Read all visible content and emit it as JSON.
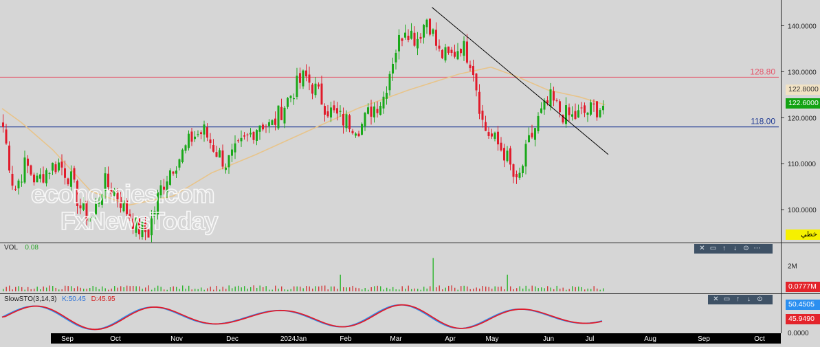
{
  "watermark": {
    "line1": "economies.com",
    "line2": "FxNewsToday"
  },
  "toolbar_icons": [
    "close-icon",
    "window-icon",
    "move-up-icon",
    "move-down-icon",
    "settings-icon",
    "more-icon"
  ],
  "toolbar_glyphs": {
    "close": "✕",
    "window": "▭",
    "up": "↑",
    "down": "↓",
    "settings": "⊙",
    "more": "⋯"
  },
  "price_pane": {
    "y_ticks": [
      "140.0000",
      "130.0000",
      "120.0000",
      "110.0000",
      "100.0000"
    ],
    "resistance_label": "128.80",
    "support_label": "118.00",
    "ma_tag": "122.8000",
    "price_tag": "122.6000",
    "drawing_tag": "خطي"
  },
  "volume_pane": {
    "title": "VOL",
    "value": "0.08",
    "y_tick": "2M",
    "volume_tag": "0.0777M"
  },
  "stochastic_pane": {
    "title": "SlowSTO(3,14,3)",
    "k_label": "K:50.45",
    "d_label": "D:45.95",
    "k_tag": "50.4505",
    "d_tag": "45.9490",
    "y_tick": "0.0000"
  },
  "x_axis": {
    "labels": [
      "Sep",
      "Oct",
      "Nov",
      "Dec",
      "2024Jan",
      "Feb",
      "Mar",
      "Apr",
      "May",
      "Jun",
      "Jul",
      "Aug",
      "Sep",
      "Oct"
    ]
  },
  "colors": {
    "background": "#d6d6d6",
    "bull": "#1aa81a",
    "bear": "#e01b2b",
    "moving_average": "#e8c48a",
    "resistance": "#e5556a",
    "support": "#1f3a93",
    "stoch_k": "#2b8ff0",
    "stoch_d": "#e01b2b",
    "volume": "#d23a3a",
    "axis_bar": "#000000"
  },
  "chart_data": {
    "type": "candlestick",
    "instrument_timeframe": "daily",
    "ylim": [
      93,
      145
    ],
    "candles_anchor_close": [
      [
        123,
        118
      ],
      [
        121,
        104
      ],
      [
        120,
        110
      ],
      [
        115,
        106
      ],
      [
        113,
        109
      ],
      [
        111,
        110
      ],
      [
        110,
        107
      ],
      [
        106,
        100
      ],
      [
        103,
        98
      ],
      [
        104,
        106
      ],
      [
        105,
        104
      ],
      [
        104,
        100
      ],
      [
        102,
        96
      ],
      [
        100,
        95
      ],
      [
        101,
        104
      ],
      [
        104,
        109
      ],
      [
        107,
        112
      ],
      [
        110,
        116
      ],
      [
        113,
        117
      ],
      [
        116,
        113
      ],
      [
        113,
        110
      ],
      [
        111,
        113
      ],
      [
        113,
        116
      ],
      [
        116,
        119
      ],
      [
        119,
        118
      ],
      [
        118,
        122
      ],
      [
        121,
        126
      ],
      [
        124,
        129
      ],
      [
        128,
        126
      ],
      [
        126,
        122
      ],
      [
        122,
        120
      ],
      [
        119,
        119
      ],
      [
        120,
        118
      ],
      [
        118,
        122
      ],
      [
        122,
        124
      ],
      [
        124,
        134
      ],
      [
        134,
        140
      ],
      [
        138,
        137
      ],
      [
        137,
        142
      ],
      [
        141,
        134
      ],
      [
        135,
        133
      ],
      [
        133,
        136
      ],
      [
        136,
        132
      ],
      [
        131,
        118
      ],
      [
        119,
        115
      ],
      [
        115,
        112
      ],
      [
        112,
        105
      ],
      [
        106,
        114
      ],
      [
        113,
        120
      ],
      [
        120,
        124
      ],
      [
        124,
        121
      ],
      [
        121,
        120
      ],
      [
        120,
        121
      ],
      [
        121,
        122
      ],
      [
        122,
        122.6
      ]
    ],
    "moving_average": [
      [
        0,
        122
      ],
      [
        3,
        119
      ],
      [
        8,
        113
      ],
      [
        14,
        104
      ],
      [
        20,
        101
      ],
      [
        27,
        103
      ],
      [
        33,
        108
      ],
      [
        40,
        112
      ],
      [
        48,
        117
      ],
      [
        56,
        122
      ],
      [
        64,
        126
      ],
      [
        72,
        129.5
      ],
      [
        77,
        131
      ],
      [
        81,
        129
      ],
      [
        86,
        126
      ],
      [
        91,
        124.5
      ],
      [
        95,
        122.8
      ]
    ],
    "resistance_level": 128.8,
    "support_level": 118.0,
    "trendline": [
      [
        139,
        144
      ],
      [
        196,
        112
      ]
    ],
    "volume": {
      "ylim": [
        0,
        3
      ],
      "last": 0.0777
    },
    "slow_stochastic": {
      "params": [
        3,
        14,
        3
      ],
      "k": 50.4505,
      "d": 45.949,
      "ylim": [
        0,
        100
      ]
    },
    "x_labels": [
      "Sep",
      "Oct",
      "Nov",
      "Dec",
      "2024Jan",
      "Feb",
      "Mar",
      "Apr",
      "May",
      "Jun",
      "Jul",
      "Aug",
      "Sep",
      "Oct"
    ]
  }
}
